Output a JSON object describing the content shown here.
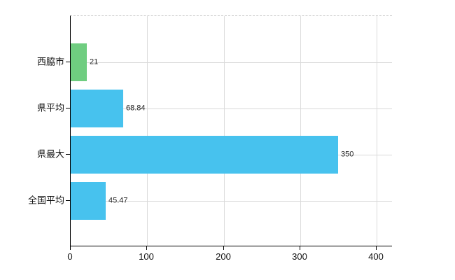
{
  "chart_data": {
    "type": "bar",
    "orientation": "horizontal",
    "categories": [
      "西脇市",
      "県平均",
      "県最大",
      "全国平均"
    ],
    "values": [
      21,
      68.84,
      350,
      45.47
    ],
    "value_labels": [
      "21",
      "68.84",
      "350",
      "45.47"
    ],
    "series": [
      {
        "name": "",
        "values": [
          21,
          68.84,
          350,
          45.47
        ]
      }
    ],
    "bar_colors": [
      "#6fcd80",
      "#47c2ee",
      "#47c2ee",
      "#47c2ee"
    ],
    "title": "",
    "xlabel": "",
    "ylabel": "",
    "xlim": [
      0,
      400
    ],
    "x_ticks": [
      0,
      100,
      200,
      300,
      400
    ],
    "x_tick_labels": [
      "0",
      "100",
      "200",
      "300",
      "400"
    ],
    "grid": true,
    "legend": false,
    "colors": {
      "highlight_bar": "#6fcd80",
      "default_bar": "#47c2ee",
      "gridline": "#d9d9d9",
      "axis": "#000000",
      "text": "#1a1a1a",
      "background": "#ffffff"
    }
  }
}
